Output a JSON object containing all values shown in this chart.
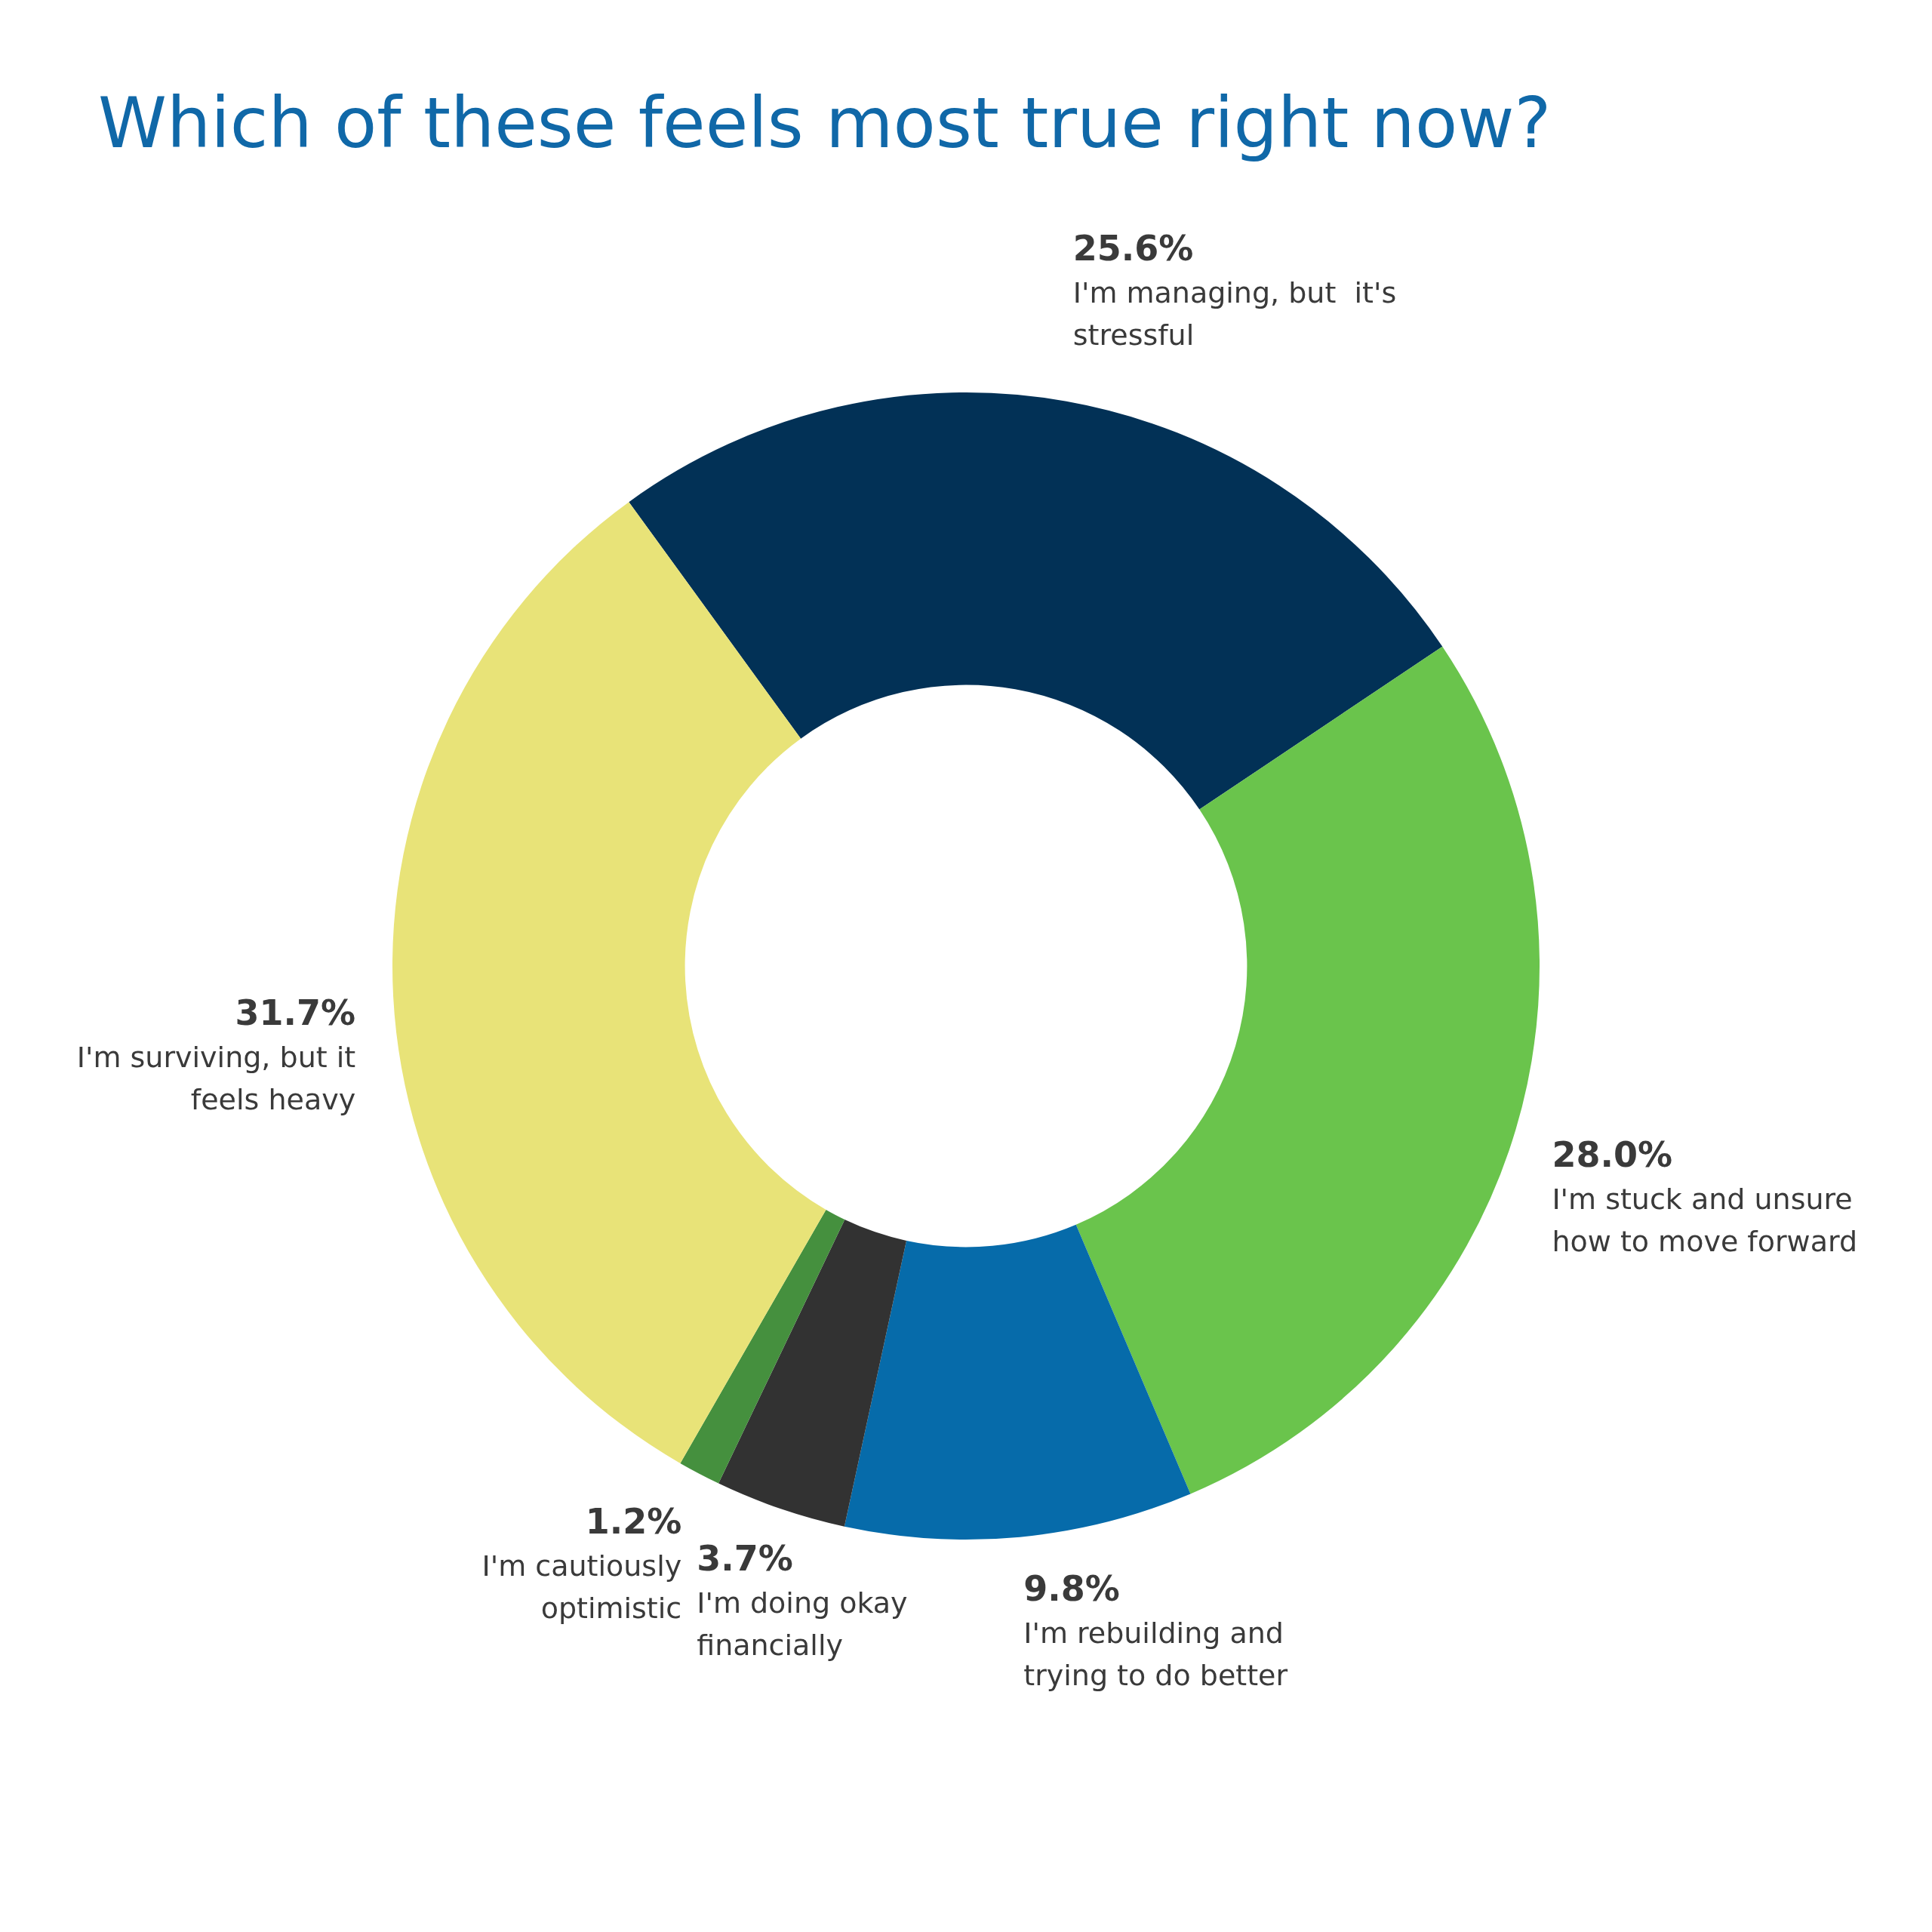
{
  "chart_data": {
    "type": "donut",
    "title": "Which of these feels most true right now?",
    "categories": [
      "I'm managing, but  it's stressful",
      "I'm stuck and unsure how to move forward",
      "I'm rebuilding and trying to do better",
      "I'm doing okay financially",
      "I'm cautiously optimistic",
      "I'm surviving, but it feels heavy"
    ],
    "values": [
      25.6,
      28.0,
      9.8,
      3.7,
      1.2,
      31.7
    ],
    "value_labels": [
      "25.6%",
      "28.0%",
      "9.8%",
      "3.7%",
      "1.2%",
      "31.7%"
    ],
    "colors": [
      "#023156",
      "#6ac44c",
      "#066baa",
      "#323232",
      "#45903e",
      "#e8e378"
    ]
  }
}
